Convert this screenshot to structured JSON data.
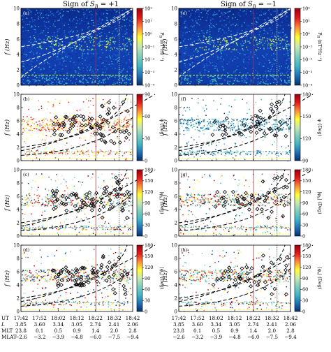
{
  "columns": [
    {
      "title": "Sign of S_B = +1",
      "title_main": "Sign of ",
      "title_sym": "S",
      "title_sub": "B",
      "title_tail": " = +1"
    },
    {
      "title": "Sign of S_B = −1",
      "title_main": "Sign of ",
      "title_sym": "S",
      "title_sub": "B",
      "title_tail": " = −1"
    }
  ],
  "panels": [
    {
      "label": "(a)",
      "col": 0,
      "row": 0,
      "type": "spectrogram"
    },
    {
      "label": "(b)",
      "col": 0,
      "row": 1,
      "type": "scatter"
    },
    {
      "label": "(c)",
      "col": 0,
      "row": 2,
      "type": "scatter"
    },
    {
      "label": "(d)",
      "col": 0,
      "row": 3,
      "type": "scatter"
    },
    {
      "label": "(e)",
      "col": 1,
      "row": 0,
      "type": "spectrogram"
    },
    {
      "label": "(f)",
      "col": 1,
      "row": 1,
      "type": "scatter"
    },
    {
      "label": "(g)",
      "col": 1,
      "row": 2,
      "type": "scatter"
    },
    {
      "label": "(h)",
      "col": 1,
      "row": 3,
      "type": "scatter"
    }
  ],
  "y_axis": {
    "label": "f (Hz)",
    "ticks": [
      "0",
      "2",
      "4",
      "6",
      "8",
      "10"
    ]
  },
  "colorbars": [
    {
      "row": 0,
      "label": "P_B (nT²Hz⁻¹)",
      "label_main": "P",
      "label_sub": "B",
      "label_tail": " (nT²Hz⁻¹)",
      "ticks": [
        "10²",
        "10¹",
        "10⁰",
        "10⁻¹",
        "10⁻²",
        "10⁻³",
        "10⁻⁴"
      ]
    },
    {
      "row": 1,
      "col": 0,
      "label": "ψ (Deg)",
      "ticks": [
        "90",
        "60",
        "30",
        "0"
      ]
    },
    {
      "row": 1,
      "col": 1,
      "label": "ψ (Deg)",
      "ticks": [
        "180",
        "150",
        "120",
        "90"
      ]
    },
    {
      "row": 2,
      "label": "|φ_k| (Deg)",
      "label_main": "|φ",
      "label_sub": "k",
      "label_tail": "| (Deg)",
      "ticks": [
        "180",
        "150",
        "120",
        "90",
        "60",
        "30",
        "0"
      ]
    },
    {
      "row": 3,
      "label": "|φ_s| (Deg)",
      "label_main": "|φ",
      "label_sub": "s",
      "label_tail": "| (Deg)",
      "ticks": [
        "180",
        "150",
        "120",
        "90",
        "60",
        "30",
        "0"
      ]
    }
  ],
  "colorbar_gradient": [
    "#08306b",
    "#2171b5",
    "#41b6c4",
    "#7fcdbb",
    "#c7e9b4",
    "#ffff33",
    "#fd8d3c",
    "#e31a1c",
    "#99000d"
  ],
  "time_axis": {
    "rows": [
      {
        "name": "UT",
        "values": [
          "17:42",
          "17:52",
          "18:02",
          "18:12",
          "18:22",
          "18:32",
          "18:42"
        ]
      },
      {
        "name": "L",
        "values": [
          "3.85",
          "3.60",
          "3.34",
          "3.05",
          "2.74",
          "2.41",
          "2.06"
        ]
      },
      {
        "name": "MLT",
        "values": [
          "23.8",
          "0.1",
          "0.5",
          "0.9",
          "1.4",
          "2.0",
          "2.8"
        ]
      },
      {
        "name": "MLAT",
        "values": [
          "−2.6",
          "−3.2",
          "−3.9",
          "−4.8",
          "−6.0",
          "−7.5",
          "−9.4"
        ]
      }
    ]
  },
  "marker_color": "#e41a1c"
}
